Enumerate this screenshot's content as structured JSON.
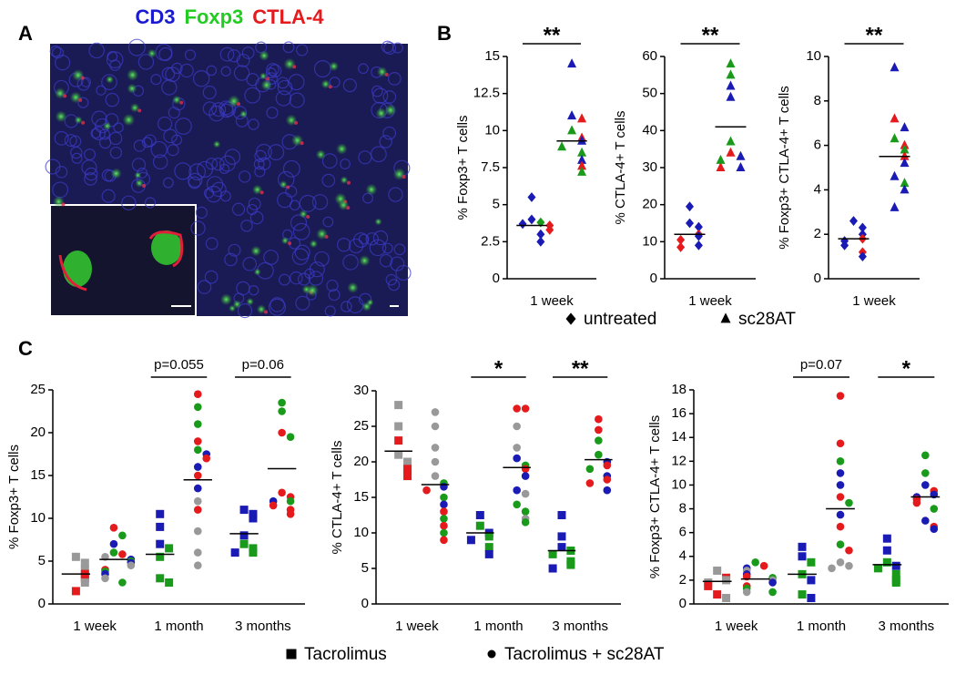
{
  "panel_a": {
    "label": "A",
    "title_parts": [
      {
        "text": "CD3",
        "color": "#1a1ad0"
      },
      {
        "text": "Foxp3",
        "color": "#22cc22"
      },
      {
        "text": "CTLA-4",
        "color": "#e41a1c"
      }
    ]
  },
  "panel_b": {
    "label": "B",
    "legend": [
      {
        "name": "untreated",
        "marker": "diamond"
      },
      {
        "name": "sc28AT",
        "marker": "triangle"
      }
    ]
  },
  "panel_c": {
    "label": "C",
    "legend": [
      {
        "name": "Tacrolimus",
        "marker": "square"
      },
      {
        "name": "Tacrolimus + sc28AT",
        "marker": "circle"
      }
    ]
  },
  "chart_data": [
    {
      "type": "dot",
      "ylabel": "% Foxp3+ T cells",
      "categories": [
        "1 week"
      ],
      "ylim": [
        0,
        15
      ],
      "yticks": [
        0,
        2.5,
        5,
        7.5,
        10,
        12.5,
        15
      ],
      "significance": [
        "**"
      ],
      "groups": [
        [
          {
            "marker": "diamond",
            "median": 3.6,
            "values": [
              5.5,
              4.0,
              3.8,
              3.7,
              3.6,
              3.3,
              3.0,
              2.5
            ],
            "colors": [
              "#1a1ab4",
              "#1a1ab4",
              "#1a9a1a",
              "#1a1ab4",
              "#e41a1c",
              "#e41a1c",
              "#1a1ab4",
              "#1a1ab4"
            ]
          },
          {
            "marker": "triangle",
            "median": 9.3,
            "values": [
              14.5,
              11.0,
              10.8,
              10.0,
              9.5,
              9.3,
              8.9,
              8.5,
              8.0,
              7.6,
              7.2
            ],
            "colors": [
              "#1a1ab4",
              "#1a1ab4",
              "#e41a1c",
              "#1a9a1a",
              "#e41a1c",
              "#1a1ab4",
              "#1a9a1a",
              "#1a9a1a",
              "#1a1ab4",
              "#e41a1c",
              "#1a9a1a"
            ]
          }
        ]
      ]
    },
    {
      "type": "dot",
      "ylabel": "% CTLA-4+ T cells",
      "categories": [
        "1 week"
      ],
      "ylim": [
        0,
        60
      ],
      "yticks": [
        0,
        10,
        20,
        30,
        40,
        50,
        60
      ],
      "significance": [
        "**"
      ],
      "groups": [
        [
          {
            "marker": "diamond",
            "median": 12,
            "values": [
              19.5,
              15,
              14,
              12,
              11.5,
              10.5,
              9,
              8.5
            ],
            "colors": [
              "#1a1ab4",
              "#1a1ab4",
              "#1a1ab4",
              "#e41a1c",
              "#1a1ab4",
              "#e41a1c",
              "#1a1ab4",
              "#e41a1c"
            ]
          },
          {
            "marker": "triangle",
            "median": 41,
            "values": [
              58,
              55,
              52,
              49,
              37,
              34,
              33,
              32,
              30,
              30
            ],
            "colors": [
              "#1a9a1a",
              "#1a9a1a",
              "#1a1ab4",
              "#1a1ab4",
              "#1a9a1a",
              "#e41a1c",
              "#1a1ab4",
              "#1a9a1a",
              "#1a1ab4",
              "#e41a1c"
            ]
          }
        ]
      ]
    },
    {
      "type": "dot",
      "ylabel": "% Foxp3+ CTLA-4+ T cells",
      "categories": [
        "1 week"
      ],
      "ylim": [
        0,
        10
      ],
      "yticks": [
        0,
        2,
        4,
        6,
        8,
        10
      ],
      "significance": [
        "**"
      ],
      "groups": [
        [
          {
            "marker": "diamond",
            "median": 1.8,
            "values": [
              2.6,
              2.3,
              2.0,
              1.8,
              1.7,
              1.5,
              1.2,
              1.0
            ],
            "colors": [
              "#1a1ab4",
              "#1a1ab4",
              "#1a1ab4",
              "#e41a1c",
              "#1a1ab4",
              "#1a1ab4",
              "#e41a1c",
              "#1a1ab4"
            ]
          },
          {
            "marker": "triangle",
            "median": 5.5,
            "values": [
              9.5,
              7.2,
              6.8,
              6.3,
              6.0,
              5.8,
              5.5,
              5.2,
              4.6,
              4.3,
              4.0,
              3.2
            ],
            "colors": [
              "#1a1ab4",
              "#e41a1c",
              "#1a1ab4",
              "#1a9a1a",
              "#e41a1c",
              "#1a9a1a",
              "#e41a1c",
              "#1a1ab4",
              "#1a1ab4",
              "#1a9a1a",
              "#1a1ab4",
              "#1a1ab4"
            ]
          }
        ]
      ]
    },
    {
      "type": "dot",
      "ylabel": "% Foxp3+ T cells",
      "categories": [
        "1 week",
        "1 month",
        "3 months"
      ],
      "ylim": [
        0,
        25
      ],
      "yticks": [
        0,
        5,
        10,
        15,
        20,
        25
      ],
      "significance": [
        null,
        "p=0.055",
        "p=0.06"
      ],
      "groups": [
        [
          {
            "marker": "square",
            "median": 3.5,
            "values": [
              5.5,
              4.8,
              4.0,
              3.5,
              3.0,
              2.5,
              1.5
            ],
            "colors": [
              "#999999",
              "#999999",
              "#999999",
              "#e41a1c",
              "#e41a1c",
              "#999999",
              "#e41a1c"
            ]
          },
          {
            "marker": "circle",
            "median": 5.2,
            "values": [
              8.9,
              8,
              7,
              6,
              5.8,
              5.5,
              5.2,
              5,
              4.8,
              4.5,
              4.0,
              3.8,
              3.5,
              3,
              2.5
            ],
            "colors": [
              "#e41a1c",
              "#1a9a1a",
              "#1a1ab4",
              "#1a9a1a",
              "#e41a1c",
              "#999999",
              "#1a1ab4",
              "#1a9a1a",
              "#1a1ab4",
              "#999999",
              "#e41a1c",
              "#1a9a1a",
              "#1a1ab4",
              "#999999",
              "#1a9a1a"
            ]
          }
        ],
        [
          {
            "marker": "square",
            "median": 5.8,
            "values": [
              10.5,
              9,
              7,
              6.5,
              5.5,
              3,
              2.5
            ],
            "colors": [
              "#1a1ab4",
              "#1a1ab4",
              "#1a1ab4",
              "#1a9a1a",
              "#1a9a1a",
              "#1a9a1a",
              "#1a9a1a"
            ]
          },
          {
            "marker": "circle",
            "median": 14.5,
            "values": [
              24.5,
              23,
              21,
              19,
              18,
              17.5,
              17,
              16,
              15,
              13.5,
              12,
              11,
              8.5,
              6,
              4.5
            ],
            "colors": [
              "#e41a1c",
              "#1a9a1a",
              "#1a9a1a",
              "#e41a1c",
              "#1a9a1a",
              "#1a1ab4",
              "#e41a1c",
              "#1a1ab4",
              "#e41a1c",
              "#1a1ab4",
              "#999999",
              "#e41a1c",
              "#999999",
              "#999999",
              "#999999"
            ]
          }
        ],
        [
          {
            "marker": "square",
            "median": 8.2,
            "values": [
              11,
              10.5,
              10,
              8,
              7,
              6.5,
              6,
              6
            ],
            "colors": [
              "#1a1ab4",
              "#1a1ab4",
              "#1a1ab4",
              "#1a1ab4",
              "#1a9a1a",
              "#1a9a1a",
              "#1a9a1a",
              "#1a1ab4"
            ]
          },
          {
            "marker": "circle",
            "median": 15.8,
            "values": [
              23.5,
              22.5,
              20,
              19.5,
              13,
              12.5,
              12,
              12,
              11.5,
              11,
              10.5
            ],
            "colors": [
              "#1a9a1a",
              "#1a9a1a",
              "#e41a1c",
              "#1a9a1a",
              "#e41a1c",
              "#e41a1c",
              "#1a9a1a",
              "#1a1ab4",
              "#e41a1c",
              "#e41a1c",
              "#e41a1c"
            ]
          }
        ]
      ]
    },
    {
      "type": "dot",
      "ylabel": "% CTLA-4+ T cells",
      "categories": [
        "1 week",
        "1 month",
        "3 months"
      ],
      "ylim": [
        0,
        30
      ],
      "yticks": [
        0,
        5,
        10,
        15,
        20,
        25,
        30
      ],
      "significance": [
        null,
        "*",
        "**"
      ],
      "groups": [
        [
          {
            "marker": "square",
            "median": 21.5,
            "values": [
              28,
              25,
              23,
              21,
              20,
              19,
              18
            ],
            "colors": [
              "#999999",
              "#999999",
              "#e41a1c",
              "#999999",
              "#999999",
              "#e41a1c",
              "#e41a1c"
            ]
          },
          {
            "marker": "circle",
            "median": 16.8,
            "values": [
              27,
              25,
              22,
              20,
              18,
              17,
              16.5,
              16,
              15,
              14,
              13,
              12,
              11,
              10,
              9
            ],
            "colors": [
              "#999999",
              "#999999",
              "#999999",
              "#999999",
              "#999999",
              "#1a9a1a",
              "#1a1ab4",
              "#e41a1c",
              "#1a9a1a",
              "#1a1ab4",
              "#e41a1c",
              "#1a9a1a",
              "#e41a1c",
              "#1a9a1a",
              "#e41a1c"
            ]
          }
        ],
        [
          {
            "marker": "square",
            "median": 10,
            "values": [
              12.5,
              11,
              10,
              9.5,
              9,
              8,
              7
            ],
            "colors": [
              "#1a1ab4",
              "#1a9a1a",
              "#1a1ab4",
              "#1a9a1a",
              "#1a1ab4",
              "#1a9a1a",
              "#1a1ab4"
            ]
          },
          {
            "marker": "circle",
            "median": 19.2,
            "values": [
              27.5,
              27.5,
              25,
              22,
              20.5,
              19.5,
              19,
              18,
              16,
              15.5,
              14,
              13,
              12,
              11.5
            ],
            "colors": [
              "#e41a1c",
              "#e41a1c",
              "#999999",
              "#999999",
              "#1a1ab4",
              "#1a9a1a",
              "#e41a1c",
              "#1a1ab4",
              "#1a1ab4",
              "#999999",
              "#1a9a1a",
              "#1a9a1a",
              "#999999",
              "#1a9a1a"
            ]
          }
        ],
        [
          {
            "marker": "square",
            "median": 7.5,
            "values": [
              12.5,
              9.5,
              8,
              7.5,
              7,
              6,
              5.5,
              5
            ],
            "colors": [
              "#1a1ab4",
              "#1a1ab4",
              "#1a1ab4",
              "#1a9a1a",
              "#1a9a1a",
              "#1a9a1a",
              "#1a9a1a",
              "#1a1ab4"
            ]
          },
          {
            "marker": "circle",
            "median": 20.3,
            "values": [
              26,
              24.5,
              23,
              21,
              20,
              19.5,
              19,
              18,
              17.5,
              17,
              16
            ],
            "colors": [
              "#e41a1c",
              "#e41a1c",
              "#1a9a1a",
              "#1a9a1a",
              "#1a1ab4",
              "#e41a1c",
              "#1a9a1a",
              "#1a1ab4",
              "#e41a1c",
              "#e41a1c",
              "#1a1ab4"
            ]
          }
        ]
      ]
    },
    {
      "type": "dot",
      "ylabel": "% Foxp3+ CTLA-4+ T cells",
      "categories": [
        "1 week",
        "1 month",
        "3 months"
      ],
      "ylim": [
        0,
        18
      ],
      "yticks": [
        0,
        2,
        4,
        6,
        8,
        10,
        12,
        14,
        16,
        18
      ],
      "significance": [
        null,
        "p=0.07",
        "*"
      ],
      "groups": [
        [
          {
            "marker": "square",
            "median": 1.9,
            "values": [
              2.8,
              2.2,
              2,
              1.8,
              1.5,
              0.8,
              0.5
            ],
            "colors": [
              "#999999",
              "#e41a1c",
              "#999999",
              "#999999",
              "#e41a1c",
              "#e41a1c",
              "#999999"
            ]
          },
          {
            "marker": "circle",
            "median": 2.1,
            "values": [
              3.5,
              3.2,
              3,
              2.8,
              2.5,
              2.3,
              2.2,
              2,
              1.8,
              1.5,
              1.3,
              1,
              1
            ],
            "colors": [
              "#1a9a1a",
              "#e41a1c",
              "#1a1ab4",
              "#999999",
              "#1a1ab4",
              "#e41a1c",
              "#1a9a1a",
              "#999999",
              "#1a1ab4",
              "#e41a1c",
              "#1a9a1a",
              "#999999",
              "#1a9a1a"
            ]
          }
        ],
        [
          {
            "marker": "square",
            "median": 2.5,
            "values": [
              4.8,
              4,
              3.5,
              2.5,
              2,
              0.8,
              0.5
            ],
            "colors": [
              "#1a1ab4",
              "#1a1ab4",
              "#1a9a1a",
              "#1a9a1a",
              "#1a1ab4",
              "#1a9a1a",
              "#1a1ab4"
            ]
          },
          {
            "marker": "circle",
            "median": 8,
            "values": [
              17.5,
              13.5,
              12,
              11,
              10,
              9,
              8.5,
              7.5,
              6.5,
              5,
              4.5,
              3.5,
              3.2,
              3
            ],
            "colors": [
              "#e41a1c",
              "#e41a1c",
              "#1a9a1a",
              "#1a1ab4",
              "#1a1ab4",
              "#e41a1c",
              "#1a9a1a",
              "#1a1ab4",
              "#e41a1c",
              "#1a9a1a",
              "#e41a1c",
              "#999999",
              "#999999",
              "#999999"
            ]
          }
        ],
        [
          {
            "marker": "square",
            "median": 3.3,
            "values": [
              5.5,
              4.5,
              3.5,
              3.2,
              3,
              2.5,
              2,
              1.8
            ],
            "colors": [
              "#1a1ab4",
              "#1a1ab4",
              "#1a9a1a",
              "#1a1ab4",
              "#1a9a1a",
              "#1a9a1a",
              "#1a9a1a",
              "#1a9a1a"
            ]
          },
          {
            "marker": "circle",
            "median": 9,
            "values": [
              12.5,
              11,
              10,
              9.5,
              9.2,
              9,
              8.8,
              8.5,
              8,
              7,
              6.5,
              6.3
            ],
            "colors": [
              "#1a9a1a",
              "#1a9a1a",
              "#1a1ab4",
              "#e41a1c",
              "#1a1ab4",
              "#1a1ab4",
              "#e41a1c",
              "#e41a1c",
              "#1a9a1a",
              "#1a1ab4",
              "#e41a1c",
              "#1a1ab4"
            ]
          }
        ]
      ]
    }
  ]
}
